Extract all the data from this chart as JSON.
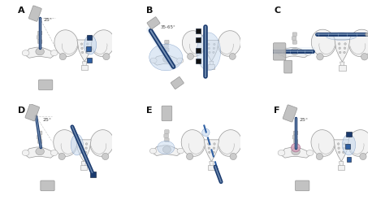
{
  "background_color": "#ffffff",
  "panel_labels": [
    "A",
    "B",
    "C",
    "D",
    "E",
    "F"
  ],
  "panel_label_color": "#111111",
  "panel_label_fontsize": 8,
  "bone_color": "#f2f2f2",
  "bone_edge_color": "#999999",
  "bone_detail_color": "#cccccc",
  "blue_dark": "#1a3a6e",
  "blue_mid": "#2e5fa3",
  "blue_light": "#6e9fd4",
  "blue_very_light": "#b8d0e8",
  "blue_fill": "#c5d8ee",
  "blue_cement": "#4a7ac8",
  "device_gray": "#b8b8b8",
  "device_gray_dark": "#888888",
  "device_gray_light": "#d5d5d5",
  "angle_text_A": "25°",
  "angle_text_B": "35-65°",
  "angle_text_F": "25°",
  "text_color": "#444444",
  "text_fontsize": 4.5,
  "pink_fill": "#d4a0b8",
  "pink_edge": "#a87090"
}
